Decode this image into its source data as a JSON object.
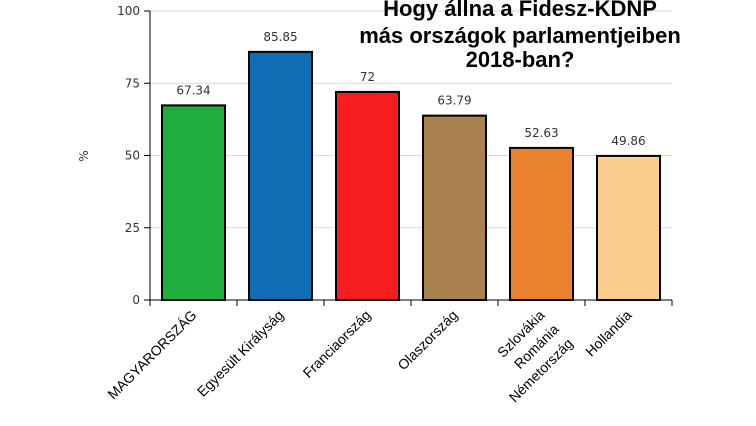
{
  "chart_data": {
    "type": "bar",
    "title": [
      "Hogy állna a Fidesz-KDNP",
      "más országok parlamentjeiben",
      "2018-ban?"
    ],
    "ylabel": "%",
    "ylim": [
      0,
      100
    ],
    "yticks": [
      "0",
      "25",
      "50",
      "75",
      "100"
    ],
    "grid": true,
    "categories": [
      {
        "lines": [
          "MAGYARORSZÁG"
        ]
      },
      {
        "lines": [
          "Egyesült Királyság"
        ]
      },
      {
        "lines": [
          "Franciaország"
        ]
      },
      {
        "lines": [
          "Olaszország"
        ]
      },
      {
        "lines": [
          "Szlovákia",
          "Románia",
          "Németország"
        ]
      },
      {
        "lines": [
          "Hollandia"
        ]
      }
    ],
    "values": [
      67.34,
      85.85,
      72,
      63.79,
      52.63,
      49.86
    ],
    "value_labels": [
      "67.34",
      "85.85",
      "72",
      "63.79",
      "52.63",
      "49.86"
    ],
    "colors": [
      "#1fae3e",
      "#0f6db3",
      "#f51d1d",
      "#a8814f",
      "#e8822f",
      "#facd8e"
    ]
  }
}
